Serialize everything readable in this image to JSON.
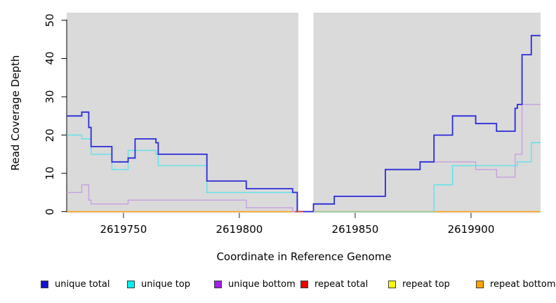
{
  "chart_data": {
    "type": "line",
    "subtype": "step",
    "title": "",
    "xlabel": "Coordinate in Reference Genome",
    "ylabel": "Read Coverage Depth",
    "plot_background": "#DADADA",
    "gap_background": "#FFFFFF",
    "x_axis": {
      "lim": [
        2619725.5,
        2619930
      ],
      "ticks": [
        {
          "value": 2619750,
          "label": "2619750"
        },
        {
          "value": 2619800,
          "label": "2619800"
        },
        {
          "value": 2619850,
          "label": "2619850"
        },
        {
          "value": 2619900,
          "label": "2619900"
        }
      ]
    },
    "y_axis": {
      "lim": [
        0,
        52
      ],
      "ticks": [
        {
          "value": 0,
          "label": "0"
        },
        {
          "value": 10,
          "label": "10"
        },
        {
          "value": 20,
          "label": "20"
        },
        {
          "value": 30,
          "label": "30"
        },
        {
          "value": 40,
          "label": "40"
        },
        {
          "value": 50,
          "label": "50"
        }
      ]
    },
    "no_data_gap": {
      "from": 2619825.5,
      "to": 2619832
    },
    "series": [
      {
        "name": "repeat total",
        "color": "#E8211A",
        "width": 1.3,
        "breakpoints": [
          [
            2619725.5,
            0
          ]
        ]
      },
      {
        "name": "repeat top",
        "color": "#FFFF00",
        "width": 1.3,
        "breakpoints": [
          [
            2619725.5,
            0
          ]
        ]
      },
      {
        "name": "repeat bottom",
        "color": "#FFA519",
        "width": 1.6,
        "breakpoints": [
          [
            2619725.5,
            0
          ]
        ]
      },
      {
        "name": "unique bottom",
        "color": "#C79FE0",
        "width": 1.4,
        "breakpoints": [
          [
            2619725.5,
            5
          ],
          [
            2619732,
            7
          ],
          [
            2619735,
            3
          ],
          [
            2619736,
            2
          ],
          [
            2619752,
            3
          ],
          [
            2619803,
            1
          ],
          [
            2619823,
            0
          ],
          [
            2619832,
            2
          ],
          [
            2619841,
            4
          ],
          [
            2619863,
            11
          ],
          [
            2619878,
            13
          ],
          [
            2619902,
            11
          ],
          [
            2619911,
            9
          ],
          [
            2619919,
            15
          ],
          [
            2619922,
            28
          ]
        ]
      },
      {
        "name": "unique top",
        "color": "#5CE2EA",
        "width": 1.4,
        "breakpoints": [
          [
            2619725.5,
            20
          ],
          [
            2619732,
            19
          ],
          [
            2619736,
            15
          ],
          [
            2619745,
            11
          ],
          [
            2619752,
            16
          ],
          [
            2619764,
            15
          ],
          [
            2619765,
            12
          ],
          [
            2619786,
            5
          ],
          [
            2619825,
            0
          ],
          [
            2619884,
            7
          ],
          [
            2619892,
            12
          ],
          [
            2619920,
            13
          ],
          [
            2619926,
            18
          ]
        ]
      },
      {
        "name": "unique total",
        "color": "#2B2BD9",
        "width": 1.8,
        "breakpoints": [
          [
            2619725.5,
            25
          ],
          [
            2619732,
            26
          ],
          [
            2619735,
            22
          ],
          [
            2619736,
            17
          ],
          [
            2619745,
            13
          ],
          [
            2619752,
            14
          ],
          [
            2619755,
            19
          ],
          [
            2619764,
            18
          ],
          [
            2619765,
            15
          ],
          [
            2619786,
            8
          ],
          [
            2619803,
            6
          ],
          [
            2619823,
            5
          ],
          [
            2619825,
            0
          ],
          [
            2619832,
            2
          ],
          [
            2619841,
            4
          ],
          [
            2619863,
            11
          ],
          [
            2619878,
            13
          ],
          [
            2619884,
            20
          ],
          [
            2619892,
            25
          ],
          [
            2619902,
            23
          ],
          [
            2619911,
            21
          ],
          [
            2619919,
            27
          ],
          [
            2619920,
            28
          ],
          [
            2619922,
            41
          ],
          [
            2619926,
            46
          ]
        ]
      }
    ],
    "zero_line_artifacts": [
      {
        "name": "red-sliver",
        "color": "#E04038",
        "from": 2619824,
        "to": 2619827.5,
        "value": 0,
        "width": 1.6
      },
      {
        "name": "cyan-orange-blend",
        "color": "#8FCE8F",
        "from": 2619832,
        "to": 2619883.5,
        "value": 0,
        "width": 1.4
      }
    ],
    "legend": {
      "items": [
        {
          "label": "unique total",
          "color": "#1414CC"
        },
        {
          "label": "unique top",
          "color": "#00EEEE"
        },
        {
          "label": "unique bottom",
          "color": "#A020F0"
        },
        {
          "label": "repeat total",
          "color": "#EE0000"
        },
        {
          "label": "repeat top",
          "color": "#FFFF00"
        },
        {
          "label": "repeat bottom",
          "color": "#FFA500"
        }
      ]
    }
  }
}
